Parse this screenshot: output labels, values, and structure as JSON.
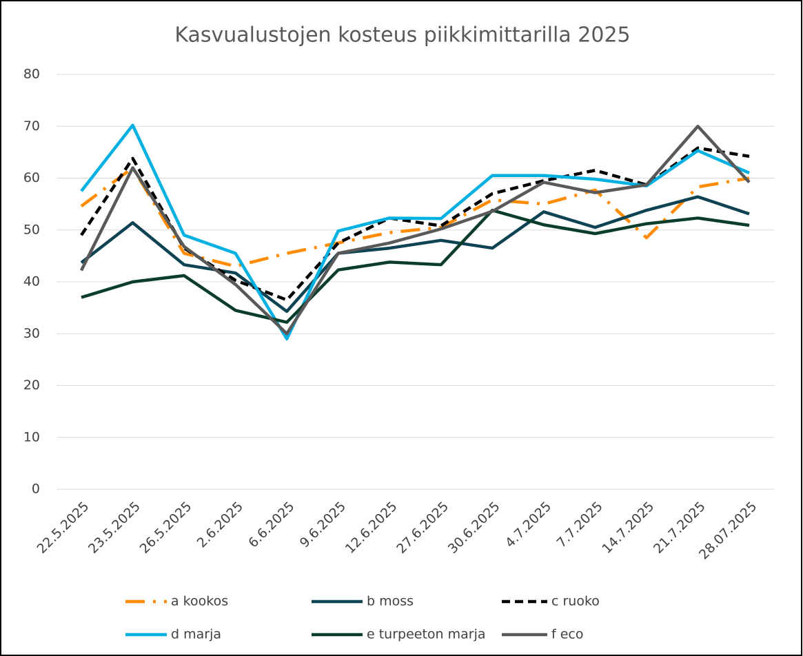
{
  "chart_data": {
    "type": "line",
    "title": "Kasvualustojen kosteus  piikkimittarilla 2025",
    "categories": [
      "22.5.2025",
      "23.5.2025",
      "26.5.2025",
      "2.6.2025",
      "6.6.2025",
      "9.6.2025",
      "12.6.2025",
      "27.6.2025",
      "30.6.2025",
      "4.7.2025",
      "7.7.2025",
      "14.7.2025",
      "21.7.2025",
      "28.07.2025"
    ],
    "series": [
      {
        "name": "a kookos",
        "color": "#ff8c00",
        "dash": "28 12 4 12",
        "values": [
          54.6,
          62,
          45.5,
          43,
          45.5,
          47.5,
          49.5,
          50.5,
          55.8,
          55,
          57.7,
          48.5,
          58.3,
          60
        ]
      },
      {
        "name": "b moss",
        "color": "#0e4354",
        "values": [
          43.7,
          51.4,
          43.3,
          41.7,
          34.3,
          45.5,
          46.5,
          48,
          46.5,
          53.5,
          50.5,
          53.8,
          56.4,
          53.1
        ]
      },
      {
        "name": "c ruoko",
        "color": "#000000",
        "dash": "12 7",
        "values": [
          49,
          63.8,
          46.5,
          40.3,
          36.5,
          47.5,
          52.3,
          50.8,
          57,
          59.5,
          61.5,
          58.7,
          65.8,
          64.2
        ]
      },
      {
        "name": "d marja",
        "color": "#00b0e0",
        "values": [
          57.5,
          70.2,
          49,
          45.5,
          29,
          49.8,
          52.3,
          52.2,
          60.5,
          60.5,
          59.8,
          58.5,
          65.3,
          61
        ]
      },
      {
        "name": "e turpeeton marja",
        "color": "#0a3d2a",
        "values": [
          37,
          40,
          41.2,
          34.5,
          32.2,
          42.3,
          43.8,
          43.3,
          53.8,
          51,
          49.3,
          51.2,
          52.3,
          50.9
        ]
      },
      {
        "name": "f eco",
        "color": "#595959",
        "values": [
          42.2,
          62,
          46.8,
          39.5,
          30,
          45.5,
          47.5,
          50.2,
          53.6,
          59.2,
          57.2,
          58.7,
          70,
          59.2
        ]
      }
    ],
    "ylim": [
      0,
      80
    ],
    "yticks": [
      0,
      10,
      20,
      30,
      40,
      50,
      60,
      70,
      80
    ],
    "grid": true,
    "legend": "bottom"
  }
}
